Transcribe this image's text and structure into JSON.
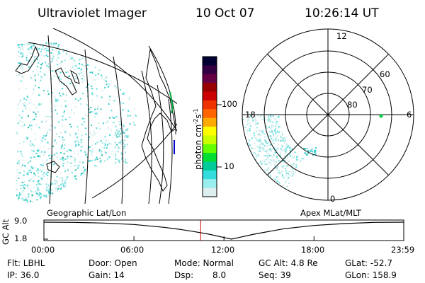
{
  "header": {
    "instrument": "Ultraviolet Imager",
    "date": "10 Oct 07",
    "time": "10:26:14 UT"
  },
  "geo_panel": {
    "label": "Geographic Lat/Lon"
  },
  "polar_panel": {
    "label": "Apex MLat/MLT",
    "mlt_labels": [
      "12",
      "18",
      "6",
      "0"
    ],
    "mlat_labels": [
      "60",
      "70",
      "80"
    ]
  },
  "colorbar": {
    "unit_label": "photon cm",
    "unit_sup1": "-2",
    "unit_mid": "s",
    "unit_sup2": "-1",
    "tick_labels": [
      "100",
      "10"
    ],
    "colors": [
      "#000033",
      "#330044",
      "#660044",
      "#990000",
      "#cc0000",
      "#ee3300",
      "#ff6600",
      "#ffaa00",
      "#ffff00",
      "#ccff00",
      "#66ff00",
      "#00dd33",
      "#00cc99",
      "#33dddd",
      "#99eeee",
      "#ddeeee"
    ]
  },
  "altitude_plot": {
    "ylabel": "GC Alt",
    "ytick_labels": [
      "9.0",
      "1.8"
    ],
    "xtick_labels": [
      "00:00",
      "06:00",
      "12:00",
      "18:00",
      "23:59"
    ],
    "current_time_hours": 10.44,
    "current_marker_color": "#cc0000"
  },
  "chart_data": {
    "type": "line",
    "xlabel": "",
    "ylabel": "GC Alt",
    "x_hours": [
      0,
      2,
      4,
      6,
      8,
      9,
      10,
      11,
      12,
      12.5,
      13,
      14,
      16,
      18,
      20,
      22,
      23.98
    ],
    "y_re": [
      9.0,
      8.9,
      8.6,
      8.0,
      6.8,
      6.0,
      5.0,
      3.9,
      2.5,
      1.8,
      2.5,
      3.9,
      6.2,
      7.6,
      8.4,
      8.9,
      9.0
    ],
    "xlim": [
      0,
      23.98
    ],
    "ylim": [
      1.8,
      9.0
    ]
  },
  "footer": {
    "filter": "Flt: LBHL",
    "door": "Door: Open",
    "mode": "Mode: Normal",
    "gc_alt": "GC Alt: 4.8 Re",
    "glat": "GLat: -52.7",
    "ip": "IP: 36.0",
    "gain": "Gain: 14",
    "dsp_label": "Dsp:",
    "dsp_value": "8.0",
    "seq": "Seq: 39",
    "glon": "GLon: 158.9"
  }
}
